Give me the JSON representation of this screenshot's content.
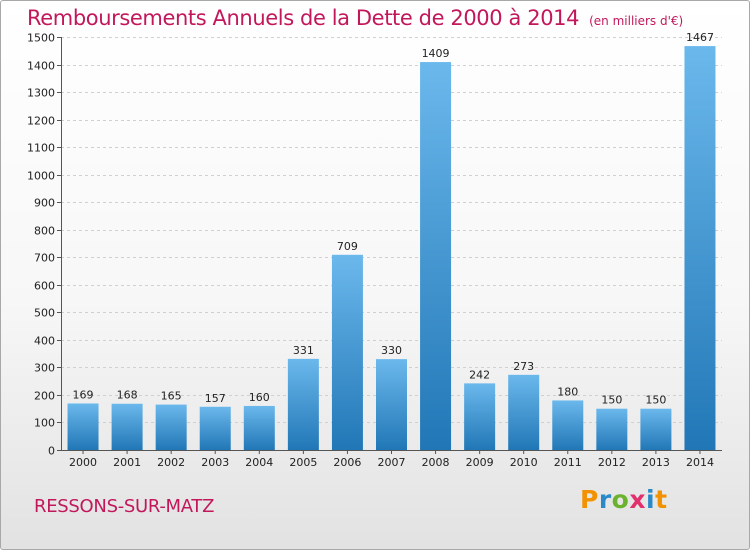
{
  "title": "Remboursements Annuels de la Dette de 2000 à 2014",
  "subtitle": "(en milliers d'€)",
  "place": "RESSONS-SUR-MATZ",
  "logo_text": "Proxiti",
  "colors": {
    "title": "#c2185b",
    "bar_light": "#6bb8ec",
    "bar_dark": "#2177b6",
    "grid": "#d0d0d0"
  },
  "chart_data": {
    "type": "bar",
    "title": "Remboursements Annuels de la Dette de 2000 à 2014",
    "subtitle": "(en milliers d'€)",
    "categories": [
      "2000",
      "2001",
      "2002",
      "2003",
      "2004",
      "2005",
      "2006",
      "2007",
      "2008",
      "2009",
      "2010",
      "2011",
      "2012",
      "2013",
      "2014"
    ],
    "values": [
      169,
      168,
      165,
      157,
      160,
      331,
      709,
      330,
      1409,
      242,
      273,
      180,
      150,
      150,
      1467
    ],
    "ylim": [
      0,
      1500
    ],
    "yticks": [
      0,
      100,
      200,
      300,
      400,
      500,
      600,
      700,
      800,
      900,
      1000,
      1100,
      1200,
      1300,
      1400,
      1500
    ],
    "grid": true,
    "xlabel": "",
    "ylabel": ""
  }
}
